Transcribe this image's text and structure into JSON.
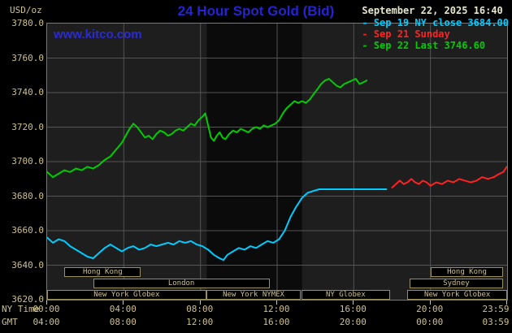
{
  "header": {
    "units_label": "USD/oz",
    "title": "24 Hour Spot Gold (Bid)",
    "watermark": "www.kitco.com",
    "timestamp": "September 22, 2025 16:40"
  },
  "axes": {
    "ny_label": "NY Time",
    "gmt_label": "GMT",
    "x_ticks": [
      {
        "hour": 0,
        "ny": "00:00",
        "gmt": "04:00"
      },
      {
        "hour": 4,
        "ny": "04:00",
        "gmt": "08:00"
      },
      {
        "hour": 8,
        "ny": "08:00",
        "gmt": "12:00"
      },
      {
        "hour": 12,
        "ny": "12:00",
        "gmt": "16:00"
      },
      {
        "hour": 16,
        "ny": "16:00",
        "gmt": "20:00"
      },
      {
        "hour": 20,
        "ny": "20:00",
        "gmt": "00:00"
      },
      {
        "hour": 23.983,
        "ny": "23:59",
        "gmt": "03:59"
      }
    ],
    "grid_hours": [
      4,
      8,
      12,
      16,
      20
    ]
  },
  "colors": {
    "title_blue": "#2424d6",
    "label_tan": "#cdc08c",
    "grid": "#545454",
    "plot_bg": "#1e1e1e",
    "band": "#0b0b0b",
    "session_border": "#9a8f5a",
    "series_close": "#00ccff",
    "series_sunday": "#ff2222",
    "series_last": "#00cc00"
  },
  "chart_data": {
    "type": "line",
    "title": "24 Hour Spot Gold (Bid)",
    "ylabel": "USD/oz",
    "xlabel": "NY Time",
    "ylim": [
      3620,
      3780
    ],
    "xlim": [
      0,
      24
    ],
    "y_step": 20,
    "grid": true,
    "legend_position": "top-right",
    "bands": [
      {
        "start": 8.33,
        "end": 13.3,
        "color": "#0b0b0b"
      }
    ],
    "series": [
      {
        "name": "sep19-ny-close",
        "legend_label": "Sep 19 NY close 3684.00",
        "color": "#00ccff",
        "points": [
          [
            0,
            3656
          ],
          [
            0.3,
            3653
          ],
          [
            0.6,
            3655
          ],
          [
            0.9,
            3654
          ],
          [
            1.2,
            3651
          ],
          [
            1.5,
            3649
          ],
          [
            1.8,
            3647
          ],
          [
            2.1,
            3645
          ],
          [
            2.4,
            3644
          ],
          [
            2.7,
            3647
          ],
          [
            3.0,
            3650
          ],
          [
            3.3,
            3652
          ],
          [
            3.6,
            3650
          ],
          [
            3.9,
            3648
          ],
          [
            4.2,
            3650
          ],
          [
            4.5,
            3651
          ],
          [
            4.8,
            3649
          ],
          [
            5.1,
            3650
          ],
          [
            5.4,
            3652
          ],
          [
            5.7,
            3651
          ],
          [
            6.0,
            3652
          ],
          [
            6.3,
            3653
          ],
          [
            6.6,
            3652
          ],
          [
            6.9,
            3654
          ],
          [
            7.2,
            3653
          ],
          [
            7.5,
            3654
          ],
          [
            7.8,
            3652
          ],
          [
            8.1,
            3651
          ],
          [
            8.4,
            3649
          ],
          [
            8.7,
            3646
          ],
          [
            9.0,
            3644
          ],
          [
            9.2,
            3643
          ],
          [
            9.4,
            3646
          ],
          [
            9.7,
            3648
          ],
          [
            10.0,
            3650
          ],
          [
            10.3,
            3649
          ],
          [
            10.6,
            3651
          ],
          [
            10.9,
            3650
          ],
          [
            11.2,
            3652
          ],
          [
            11.5,
            3654
          ],
          [
            11.8,
            3653
          ],
          [
            12.1,
            3655
          ],
          [
            12.4,
            3660
          ],
          [
            12.7,
            3668
          ],
          [
            13.0,
            3674
          ],
          [
            13.3,
            3679
          ],
          [
            13.6,
            3682
          ],
          [
            13.9,
            3683
          ],
          [
            14.2,
            3684
          ],
          [
            14.6,
            3684
          ],
          [
            15.0,
            3684
          ],
          [
            15.5,
            3684
          ],
          [
            16.0,
            3684
          ],
          [
            16.5,
            3684
          ],
          [
            17.0,
            3684
          ],
          [
            17.4,
            3684
          ],
          [
            17.7,
            3684
          ]
        ]
      },
      {
        "name": "sep21-sunday",
        "legend_label": "Sep 21 Sunday",
        "color": "#ff2222",
        "points": [
          [
            18.0,
            3685
          ],
          [
            18.2,
            3687
          ],
          [
            18.4,
            3689
          ],
          [
            18.6,
            3687
          ],
          [
            18.8,
            3688
          ],
          [
            19.0,
            3690
          ],
          [
            19.2,
            3688
          ],
          [
            19.4,
            3687
          ],
          [
            19.6,
            3689
          ],
          [
            19.8,
            3688
          ],
          [
            20.0,
            3686
          ],
          [
            20.3,
            3688
          ],
          [
            20.6,
            3687
          ],
          [
            20.9,
            3689
          ],
          [
            21.2,
            3688
          ],
          [
            21.5,
            3690
          ],
          [
            21.8,
            3689
          ],
          [
            22.1,
            3688
          ],
          [
            22.4,
            3689
          ],
          [
            22.7,
            3691
          ],
          [
            23.0,
            3690
          ],
          [
            23.3,
            3691
          ],
          [
            23.6,
            3693
          ],
          [
            23.8,
            3694
          ],
          [
            23.98,
            3697
          ]
        ]
      },
      {
        "name": "sep22-last",
        "legend_label": "Sep 22 Last 3746.60",
        "color": "#00cc00",
        "points": [
          [
            0,
            3694
          ],
          [
            0.3,
            3691
          ],
          [
            0.6,
            3693
          ],
          [
            0.9,
            3695
          ],
          [
            1.2,
            3694
          ],
          [
            1.5,
            3696
          ],
          [
            1.8,
            3695
          ],
          [
            2.1,
            3697
          ],
          [
            2.4,
            3696
          ],
          [
            2.7,
            3698
          ],
          [
            3.0,
            3701
          ],
          [
            3.3,
            3703
          ],
          [
            3.6,
            3707
          ],
          [
            3.9,
            3711
          ],
          [
            4.1,
            3715
          ],
          [
            4.3,
            3719
          ],
          [
            4.5,
            3722
          ],
          [
            4.7,
            3720
          ],
          [
            4.9,
            3717
          ],
          [
            5.1,
            3714
          ],
          [
            5.3,
            3715
          ],
          [
            5.5,
            3713
          ],
          [
            5.7,
            3716
          ],
          [
            5.9,
            3718
          ],
          [
            6.1,
            3717
          ],
          [
            6.3,
            3715
          ],
          [
            6.5,
            3716
          ],
          [
            6.7,
            3718
          ],
          [
            6.9,
            3719
          ],
          [
            7.1,
            3718
          ],
          [
            7.3,
            3720
          ],
          [
            7.5,
            3722
          ],
          [
            7.7,
            3721
          ],
          [
            7.9,
            3724
          ],
          [
            8.1,
            3726
          ],
          [
            8.25,
            3728
          ],
          [
            8.4,
            3721
          ],
          [
            8.55,
            3714
          ],
          [
            8.7,
            3712
          ],
          [
            8.85,
            3715
          ],
          [
            9.0,
            3717
          ],
          [
            9.15,
            3714
          ],
          [
            9.3,
            3713
          ],
          [
            9.5,
            3716
          ],
          [
            9.7,
            3718
          ],
          [
            9.9,
            3717
          ],
          [
            10.1,
            3719
          ],
          [
            10.3,
            3718
          ],
          [
            10.5,
            3717
          ],
          [
            10.7,
            3719
          ],
          [
            10.9,
            3720
          ],
          [
            11.1,
            3719
          ],
          [
            11.3,
            3721
          ],
          [
            11.5,
            3720
          ],
          [
            11.7,
            3721
          ],
          [
            11.9,
            3722
          ],
          [
            12.1,
            3724
          ],
          [
            12.3,
            3728
          ],
          [
            12.5,
            3731
          ],
          [
            12.7,
            3733
          ],
          [
            12.9,
            3735
          ],
          [
            13.1,
            3734
          ],
          [
            13.3,
            3735
          ],
          [
            13.5,
            3734
          ],
          [
            13.7,
            3736
          ],
          [
            13.9,
            3739
          ],
          [
            14.1,
            3742
          ],
          [
            14.3,
            3745
          ],
          [
            14.5,
            3747
          ],
          [
            14.7,
            3748
          ],
          [
            14.9,
            3746
          ],
          [
            15.1,
            3744
          ],
          [
            15.3,
            3743
          ],
          [
            15.5,
            3745
          ],
          [
            15.7,
            3746
          ],
          [
            15.9,
            3747
          ],
          [
            16.1,
            3748
          ],
          [
            16.3,
            3745
          ],
          [
            16.5,
            3746
          ],
          [
            16.67,
            3747
          ]
        ]
      }
    ],
    "sessions": [
      {
        "label": "Hong Kong",
        "row": 0,
        "start": 0.9,
        "end": 4.9
      },
      {
        "label": "Hong Kong",
        "row": 0,
        "start": 20.0,
        "end": 23.8
      },
      {
        "label": "London",
        "row": 1,
        "start": 2.4,
        "end": 11.6
      },
      {
        "label": "Sydney",
        "row": 1,
        "start": 18.9,
        "end": 23.8
      },
      {
        "label": "New York Globex",
        "row": 2,
        "start": 0.0,
        "end": 8.3
      },
      {
        "label": "New York NYMEX",
        "row": 2,
        "start": 8.3,
        "end": 13.25
      },
      {
        "label": "NY Globex",
        "row": 2,
        "start": 13.25,
        "end": 17.9
      },
      {
        "label": "New York Globex",
        "row": 2,
        "start": 18.8,
        "end": 24.0
      }
    ]
  }
}
